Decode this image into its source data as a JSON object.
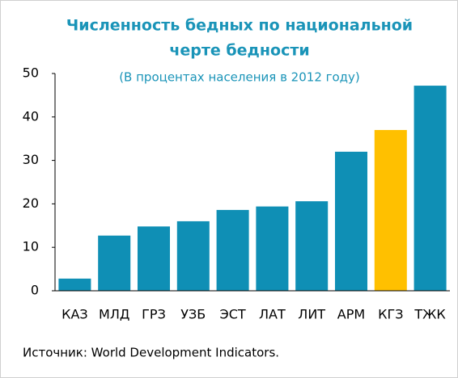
{
  "chart_data": {
    "type": "bar",
    "title": [
      "Численность бедных по национальной",
      "черте бедности"
    ],
    "subtitle": "(В процентах населения в 2012 году)",
    "categories": [
      "КАЗ",
      "МЛД",
      "ГРЗ",
      "УЗБ",
      "ЭСТ",
      "ЛАТ",
      "ЛИТ",
      "АРМ",
      "КГЗ",
      "ТЖК"
    ],
    "values": [
      2.8,
      12.7,
      14.8,
      16.0,
      18.6,
      19.4,
      20.6,
      32.0,
      37.0,
      47.2
    ],
    "colors": [
      "#0f8fb5",
      "#0f8fb5",
      "#0f8fb5",
      "#0f8fb5",
      "#0f8fb5",
      "#0f8fb5",
      "#0f8fb5",
      "#0f8fb5",
      "#ffc000",
      "#0f8fb5"
    ],
    "ylim": [
      0,
      50
    ],
    "yticks": [
      0,
      10,
      20,
      30,
      40,
      50
    ],
    "grid": false,
    "source": "Источник: World Development Indicators."
  }
}
